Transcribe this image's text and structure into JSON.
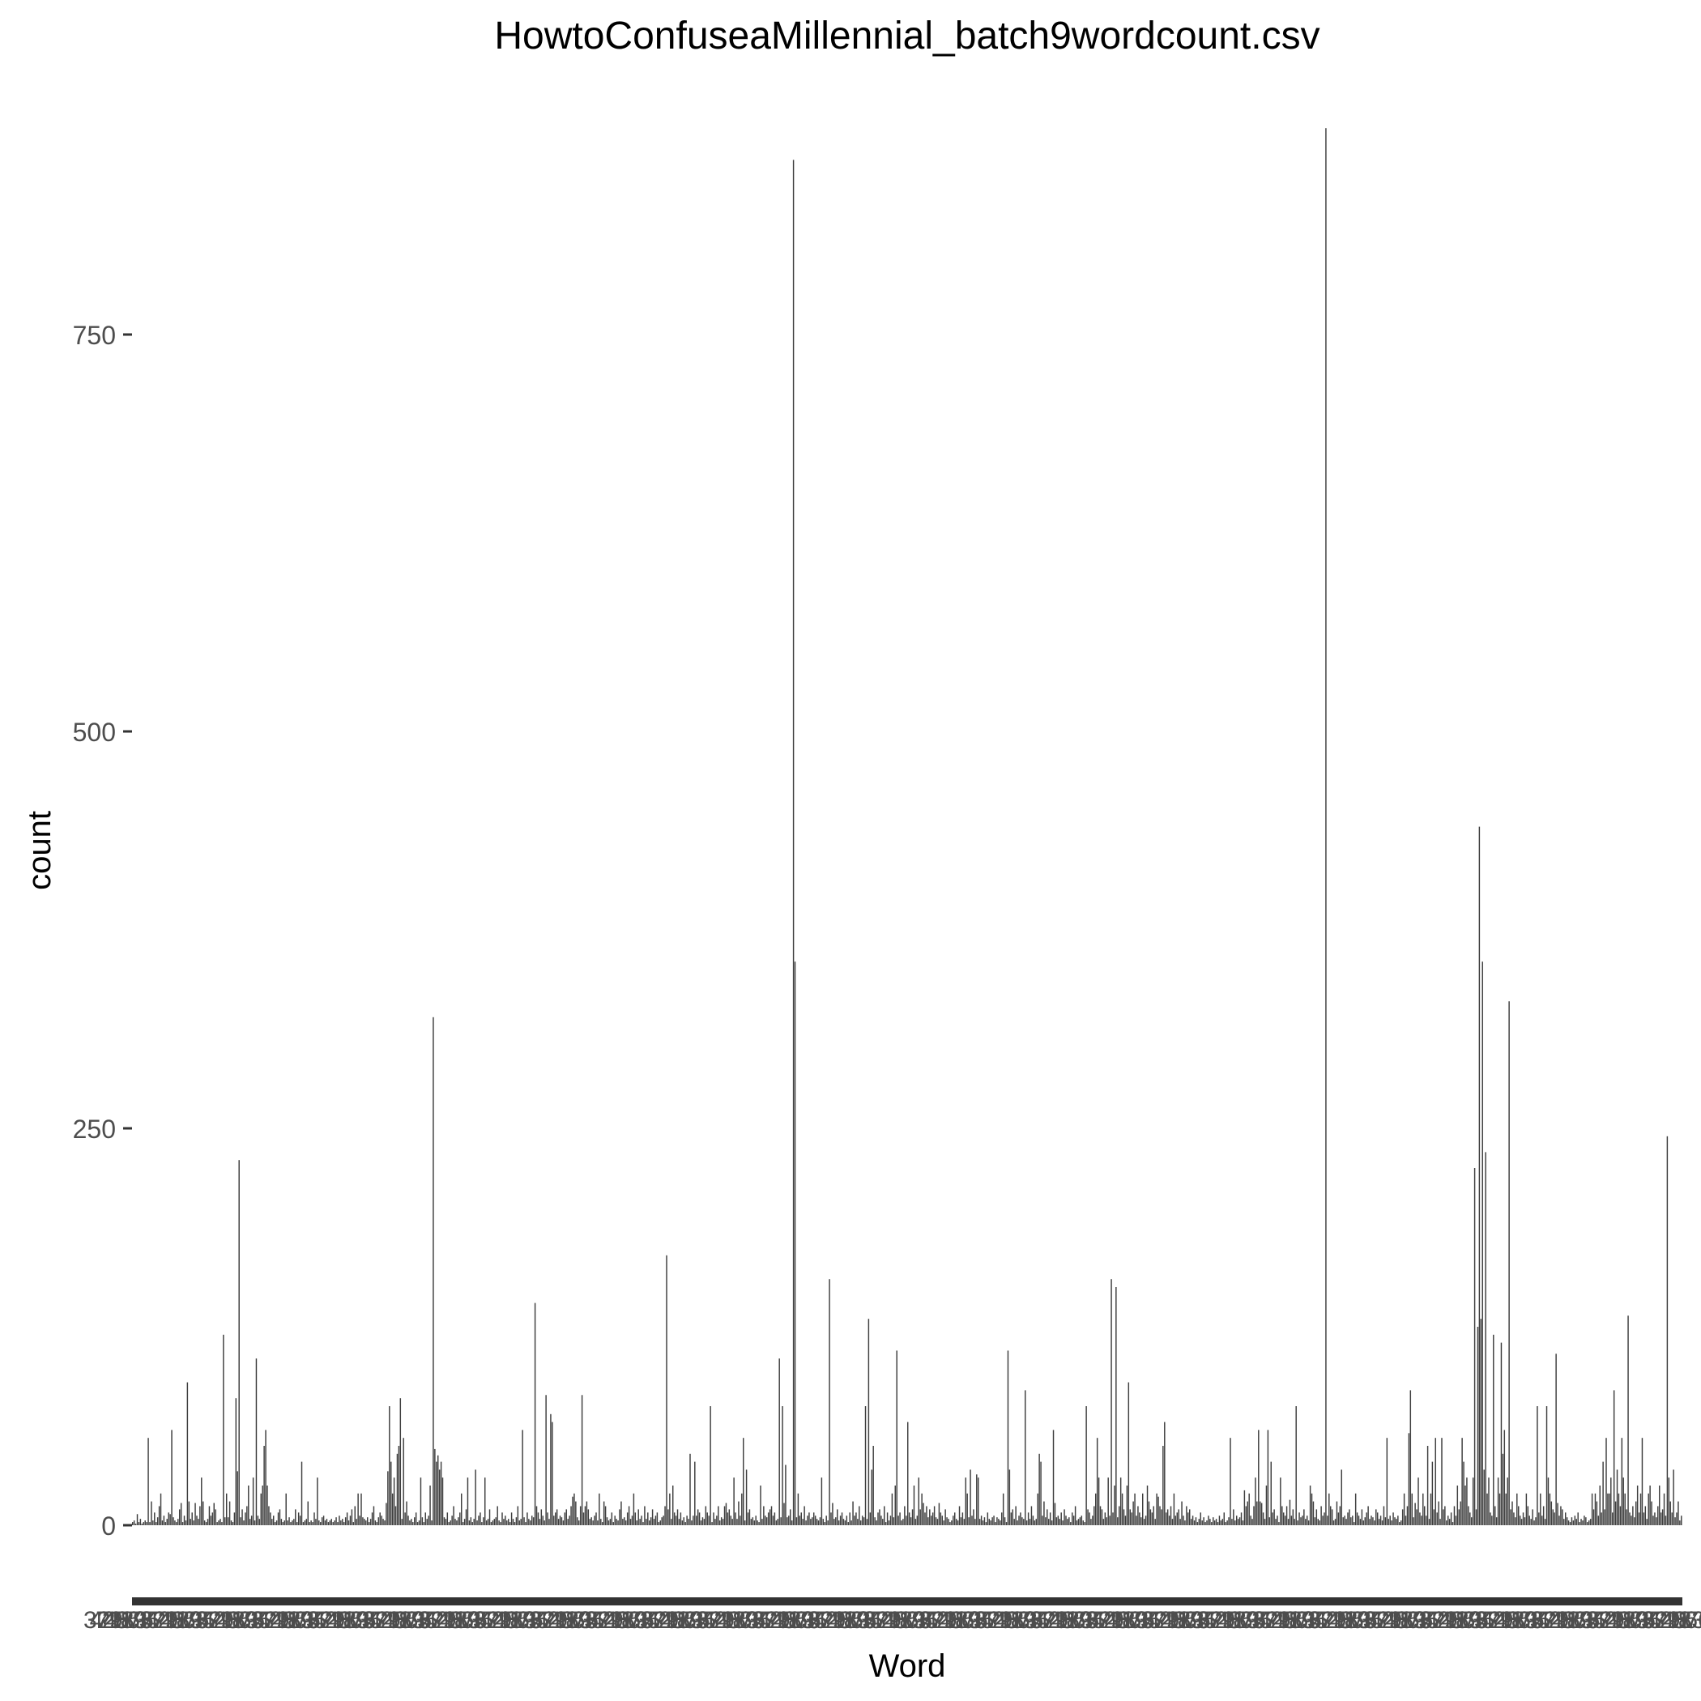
{
  "chart_data": {
    "type": "bar",
    "title": "HowtoConfuseaMillennial_batch9wordcount.csv",
    "xlabel": "Word",
    "ylabel": "count",
    "ylim": [
      0,
      900
    ],
    "yticks": [
      0,
      250,
      500,
      750
    ],
    "x_ticklabels_note": "x-axis category labels are heavily overlapping and illegible (e.g. '3', '4', '7', '2')",
    "grid": false,
    "series": [
      {
        "name": "count",
        "color": "#3d3d3d",
        "values": [
          2,
          3,
          1,
          7,
          2,
          4,
          1,
          2,
          3,
          2,
          55,
          2,
          15,
          3,
          8,
          2,
          5,
          12,
          20,
          3,
          6,
          2,
          4,
          8,
          7,
          60,
          5,
          3,
          2,
          4,
          10,
          14,
          2,
          6,
          3,
          90,
          15,
          4,
          8,
          3,
          14,
          6,
          4,
          12,
          30,
          15,
          3,
          2,
          4,
          12,
          6,
          8,
          14,
          10,
          2,
          3,
          4,
          2,
          120,
          5,
          20,
          5,
          15,
          3,
          2,
          8,
          80,
          34,
          230,
          5,
          10,
          3,
          8,
          12,
          25,
          4,
          6,
          30,
          3,
          105,
          6,
          4,
          20,
          25,
          50,
          60,
          25,
          12,
          8,
          4,
          6,
          2,
          3,
          8,
          10,
          4,
          2,
          3,
          20,
          3,
          5,
          2,
          3,
          4,
          10,
          2,
          8,
          6,
          40,
          2,
          3,
          4,
          15,
          2,
          3,
          2,
          8,
          4,
          30,
          3,
          2,
          5,
          6,
          3,
          4,
          2,
          3,
          4,
          2,
          3,
          5,
          2,
          6,
          3,
          4,
          2,
          5,
          8,
          3,
          6,
          10,
          2,
          12,
          4,
          20,
          6,
          20,
          5,
          4,
          3,
          5,
          2,
          4,
          8,
          12,
          3,
          2,
          5,
          8,
          6,
          4,
          3,
          14,
          34,
          75,
          40,
          20,
          30,
          12,
          45,
          50,
          80,
          4,
          55,
          8,
          15,
          6,
          3,
          4,
          2,
          5,
          8,
          2,
          3,
          30,
          5,
          2,
          8,
          4,
          6,
          25,
          3,
          320,
          48,
          40,
          44,
          35,
          40,
          30,
          5,
          4,
          8,
          2,
          3,
          6,
          12,
          4,
          3,
          5,
          8,
          20,
          2,
          4,
          10,
          30,
          3,
          5,
          2,
          4,
          35,
          3,
          6,
          8,
          2,
          5,
          30,
          3,
          4,
          10,
          2,
          3,
          4,
          5,
          12,
          3,
          2,
          8,
          4,
          6,
          3,
          4,
          2,
          8,
          4,
          2,
          5,
          12,
          3,
          4,
          60,
          5,
          2,
          8,
          4,
          3,
          6,
          5,
          140,
          12,
          8,
          4,
          10,
          6,
          3,
          82,
          8,
          4,
          70,
          65,
          6,
          8,
          10,
          4,
          6,
          5,
          3,
          8,
          10,
          4,
          6,
          12,
          18,
          20,
          15,
          5,
          3,
          12,
          82,
          8,
          12,
          15,
          10,
          4,
          5,
          3,
          6,
          8,
          3,
          20,
          4,
          2,
          15,
          12,
          5,
          3,
          4,
          8,
          2,
          6,
          4,
          3,
          10,
          15,
          4,
          5,
          3,
          8,
          12,
          4,
          6,
          20,
          8,
          3,
          10,
          4,
          6,
          2,
          12,
          4,
          8,
          3,
          5,
          10,
          4,
          6,
          8,
          2,
          3,
          5,
          6,
          12,
          170,
          10,
          20,
          4,
          25,
          8,
          6,
          10,
          4,
          8,
          3,
          5,
          2,
          6,
          4,
          45,
          3,
          6,
          40,
          6,
          10,
          8,
          3,
          5,
          4,
          12,
          8,
          6,
          75,
          2,
          8,
          4,
          6,
          12,
          3,
          5,
          4,
          12,
          14,
          8,
          10,
          6,
          4,
          30,
          8,
          4,
          15,
          6,
          20,
          55,
          3,
          35,
          8,
          10,
          4,
          5,
          3,
          6,
          3,
          2,
          25,
          4,
          12,
          6,
          5,
          8,
          10,
          12,
          6,
          8,
          3,
          4,
          105,
          5,
          75,
          14,
          38,
          5,
          6,
          10,
          3,
          860,
          355,
          5,
          20,
          6,
          8,
          4,
          12,
          3,
          6,
          8,
          4,
          5,
          8,
          6,
          4,
          3,
          5,
          30,
          4,
          2,
          6,
          3,
          155,
          8,
          14,
          4,
          5,
          10,
          3,
          6,
          8,
          4,
          3,
          6,
          2,
          8,
          3,
          15,
          6,
          8,
          4,
          12,
          3,
          6,
          5,
          75,
          4,
          130,
          8,
          35,
          50,
          5,
          3,
          8,
          10,
          6,
          4,
          12,
          2,
          8,
          3,
          6,
          20,
          5,
          25,
          110,
          6,
          8,
          3,
          4,
          12,
          6,
          65,
          8,
          5,
          10,
          25,
          4,
          6,
          30,
          10,
          20,
          14,
          8,
          12,
          5,
          10,
          6,
          8,
          12,
          5,
          4,
          14,
          8,
          6,
          3,
          10,
          5,
          4,
          2,
          3,
          6,
          8,
          4,
          3,
          12,
          5,
          8,
          4,
          30,
          20,
          5,
          35,
          6,
          10,
          4,
          32,
          30,
          4,
          6,
          3,
          5,
          2,
          8,
          4,
          3,
          5,
          6,
          2,
          5,
          4,
          3,
          8,
          20,
          5,
          2,
          110,
          35,
          8,
          10,
          4,
          12,
          3,
          6,
          8,
          5,
          4,
          85,
          3,
          8,
          4,
          12,
          6,
          3,
          4,
          20,
          45,
          40,
          6,
          15,
          5,
          10,
          4,
          8,
          3,
          60,
          14,
          5,
          6,
          4,
          8,
          3,
          10,
          6,
          4,
          5,
          2,
          8,
          6,
          12,
          3,
          4,
          5,
          6,
          3,
          2,
          75,
          10,
          8,
          4,
          6,
          12,
          20,
          55,
          30,
          12,
          10,
          4,
          8,
          5,
          30,
          6,
          155,
          8,
          25,
          150,
          5,
          12,
          30,
          20,
          10,
          6,
          25,
          90,
          10,
          8,
          15,
          20,
          6,
          12,
          8,
          5,
          20,
          4,
          6,
          25,
          15,
          10,
          8,
          12,
          4,
          20,
          18,
          12,
          10,
          50,
          65,
          8,
          10,
          6,
          12,
          4,
          20,
          6,
          8,
          10,
          4,
          15,
          6,
          3,
          12,
          8,
          10,
          4,
          6,
          3,
          5,
          2,
          4,
          8,
          3,
          5,
          2,
          3,
          6,
          4,
          2,
          5,
          3,
          4,
          2,
          6,
          3,
          4,
          8,
          2,
          3,
          5,
          55,
          4,
          10,
          3,
          6,
          4,
          5,
          8,
          3,
          22,
          12,
          15,
          20,
          6,
          4,
          12,
          30,
          15,
          60,
          15,
          14,
          8,
          4,
          25,
          60,
          5,
          40,
          8,
          10,
          4,
          6,
          2,
          30,
          12,
          8,
          6,
          12,
          4,
          16,
          6,
          10,
          4,
          75,
          3,
          8,
          5,
          6,
          10,
          4,
          6,
          3,
          25,
          20,
          15,
          5,
          10,
          4,
          3,
          12,
          6,
          8,
          880,
          6,
          20,
          12,
          10,
          3,
          4,
          15,
          8,
          12,
          35,
          5,
          6,
          4,
          8,
          10,
          5,
          6,
          2,
          20,
          8,
          6,
          4,
          10,
          3,
          5,
          8,
          12,
          4,
          6,
          5,
          3,
          10,
          8,
          4,
          6,
          3,
          12,
          5,
          55,
          4,
          6,
          3,
          8,
          5,
          4,
          6,
          2,
          3,
          10,
          20,
          6,
          12,
          58,
          85,
          20,
          5,
          14,
          10,
          30,
          8,
          6,
          20,
          12,
          6,
          50,
          4,
          20,
          40,
          10,
          55,
          8,
          15,
          4,
          55,
          10,
          12,
          3,
          6,
          4,
          8,
          2,
          12,
          6,
          25,
          10,
          15,
          55,
          40,
          25,
          30,
          12,
          8,
          5,
          30,
          225,
          10,
          125,
          440,
          130,
          355,
          35,
          235,
          20,
          30,
          8,
          6,
          120,
          12,
          5,
          30,
          20,
          115,
          45,
          60,
          20,
          30,
          330,
          10,
          15,
          8,
          5,
          20,
          12,
          6,
          4,
          8,
          5,
          20,
          12,
          6,
          4,
          10,
          3,
          5,
          75,
          8,
          20,
          6,
          12,
          4,
          75,
          30,
          20,
          15,
          10,
          8,
          108,
          14,
          6,
          12,
          10,
          4,
          8,
          5,
          3,
          2,
          5,
          3,
          6,
          4,
          8,
          2,
          4,
          3,
          6,
          5,
          2,
          3,
          4,
          20,
          10,
          20,
          15,
          6,
          25,
          8,
          40,
          10,
          55,
          20,
          20,
          30,
          8,
          85,
          15,
          35,
          20,
          12,
          55,
          30,
          20,
          10,
          132,
          8,
          6,
          12,
          5,
          15,
          25,
          8,
          20,
          55,
          8,
          12,
          4,
          20,
          25,
          15,
          6,
          8,
          5,
          12,
          25,
          8,
          10,
          20,
          6,
          245,
          30,
          15,
          8,
          35,
          5,
          8,
          15,
          3,
          6
        ]
      }
    ]
  }
}
